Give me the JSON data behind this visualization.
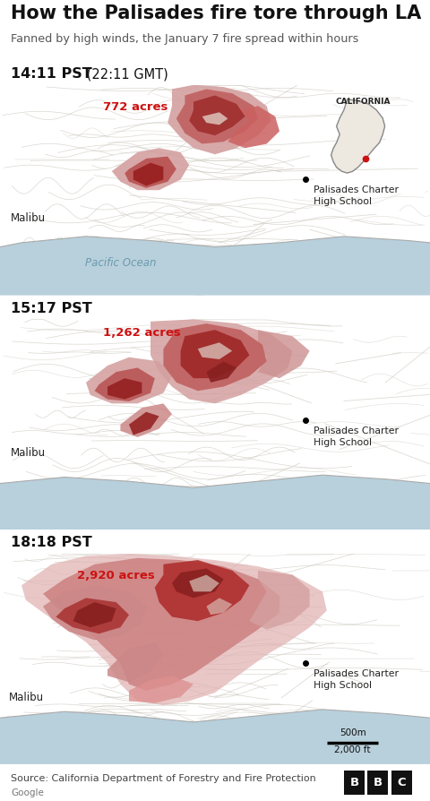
{
  "title": "How the Palisades fire tore through LA",
  "subtitle": "Fanned by high winds, the January 7 fire spread within hours",
  "source": "Source: California Department of Forestry and Fire Protection",
  "google_label": "Google",
  "scale_label_m": "500m",
  "scale_label_ft": "2,000 ft",
  "bg_color": "#ffffff",
  "map_bg_light": "#e8e4de",
  "map_bg": "#dedad2",
  "ocean_color": "#b8d0dc",
  "ocean_text_color": "#6a9aad",
  "separator_color": "#333333",
  "title_color": "#111111",
  "subtitle_color": "#555555",
  "time_color": "#111111",
  "fire_c1": "#c0a0a0",
  "fire_c2": "#d48080",
  "fire_c3": "#c05050",
  "fire_c4": "#a02020",
  "acres_color": "#cc1111",
  "label_color": "#222222",
  "panels": [
    {
      "time_bold": "14:11 PST",
      "time_normal": " (22:11 GMT)",
      "acres": "772 acres",
      "show_california": true,
      "show_pacific_ocean": true
    },
    {
      "time_bold": "15:17 PST",
      "time_normal": "",
      "acres": "1,262 acres",
      "show_california": false,
      "show_pacific_ocean": false
    },
    {
      "time_bold": "18:18 PST",
      "time_normal": "",
      "acres": "2,920 acres",
      "show_california": false,
      "show_pacific_ocean": false
    }
  ],
  "label_malibu": "Malibu",
  "label_palisades": "Palisades Charter\nHigh School",
  "label_pacific": "Pacific Ocean",
  "label_california": "CALIFORNIA",
  "contour_color": "#ccc8be",
  "road_color": "#c8c4b8"
}
